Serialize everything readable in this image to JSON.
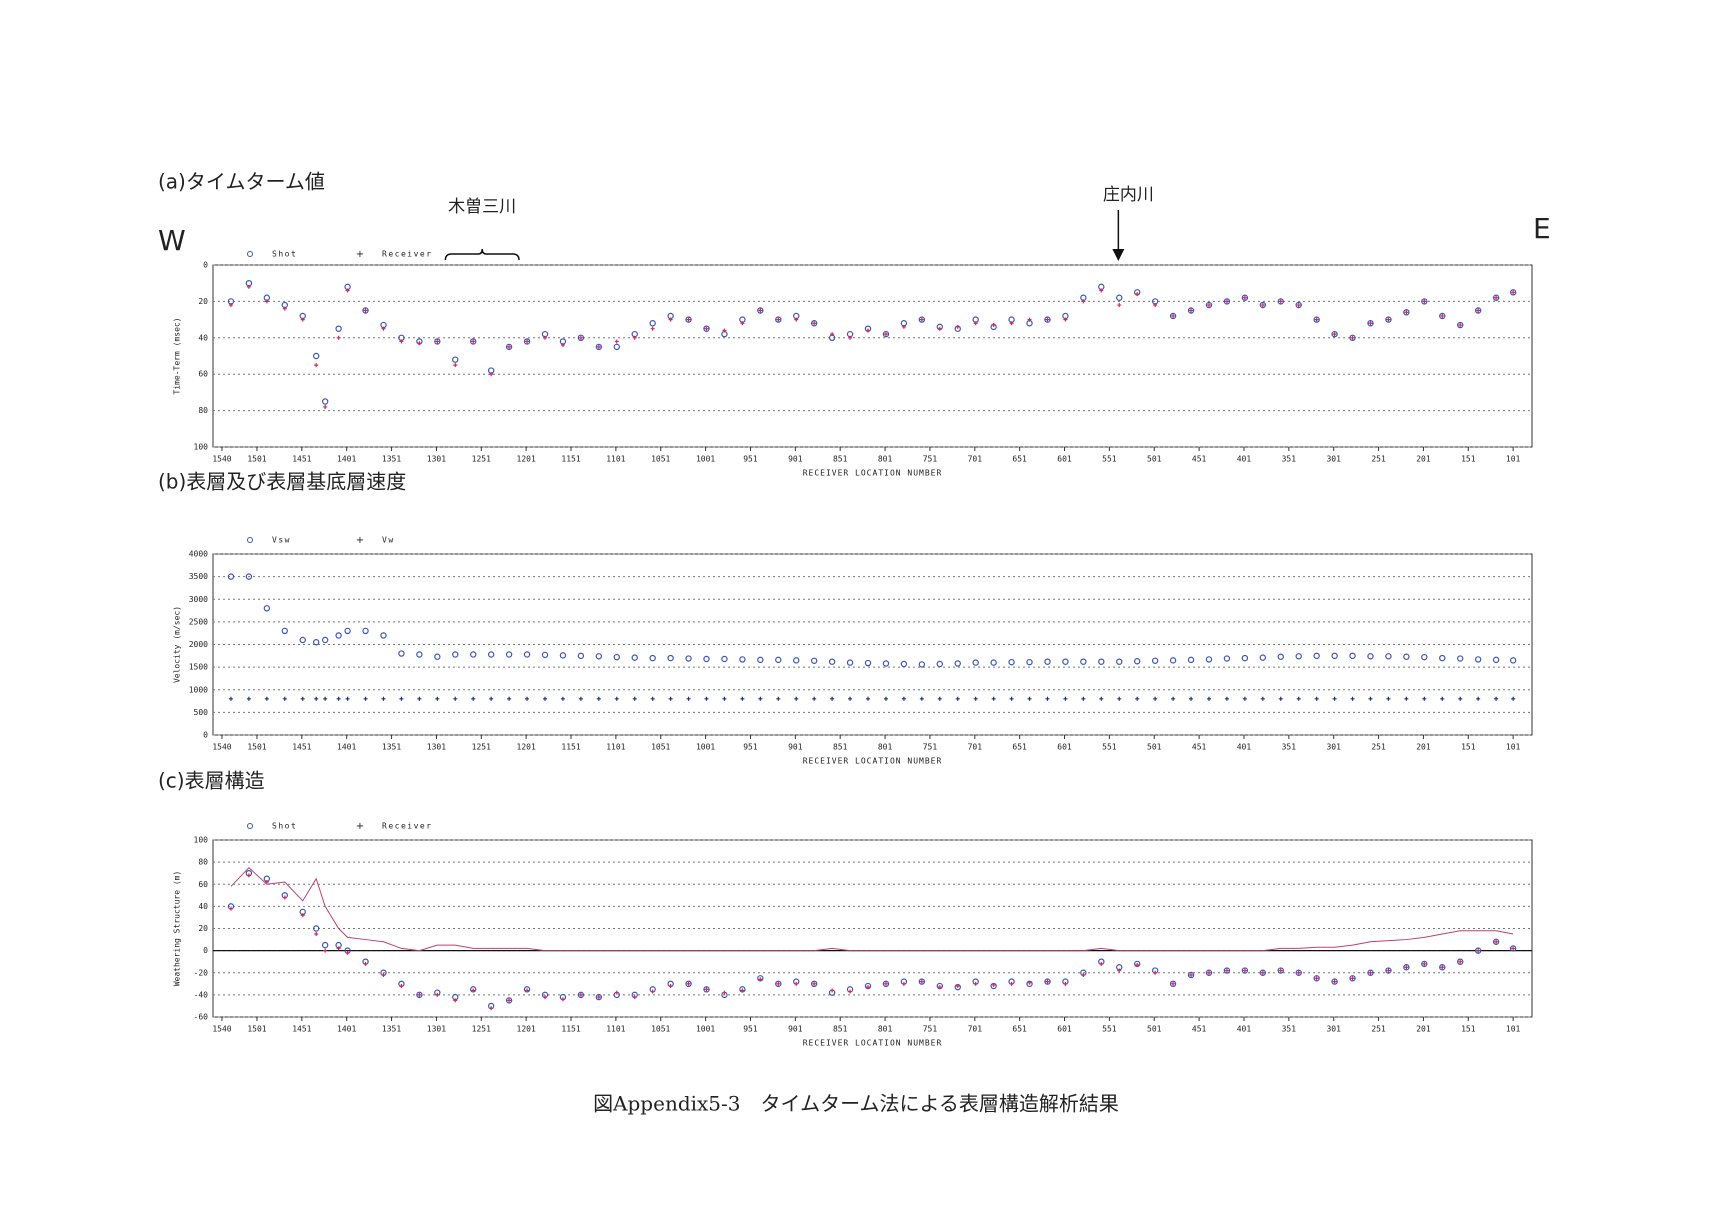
{
  "header": {
    "west": "W",
    "east": "E"
  },
  "caption": "図Appendix5-3　タイムターム法による表層構造解析結果",
  "chart_data": [
    {
      "type": "scatter",
      "title": "(a)タイムターム値",
      "ylabel": "Time-Term (msec)",
      "xlabel": "RECEIVER LOCATION NUMBER",
      "xlim": [
        1550,
        80
      ],
      "ylim": [
        100,
        0
      ],
      "grid": true,
      "xticks": [
        1540,
        1501,
        1451,
        1401,
        1351,
        1301,
        1251,
        1201,
        1151,
        1101,
        1051,
        1001,
        951,
        901,
        851,
        801,
        751,
        701,
        651,
        601,
        551,
        501,
        451,
        401,
        351,
        301,
        251,
        201,
        151,
        101
      ],
      "yticks": [
        0,
        20,
        40,
        60,
        80,
        100
      ],
      "annotations": [
        {
          "text": "木曽三川",
          "x": [
            1291,
            1209
          ]
        },
        {
          "text": "庄内川",
          "x": 541
        }
      ],
      "x": [
        1530,
        1510,
        1490,
        1470,
        1450,
        1435,
        1425,
        1410,
        1400,
        1380,
        1360,
        1340,
        1320,
        1300,
        1280,
        1260,
        1240,
        1220,
        1200,
        1180,
        1160,
        1140,
        1120,
        1100,
        1080,
        1060,
        1040,
        1020,
        1000,
        980,
        960,
        940,
        920,
        900,
        880,
        860,
        840,
        820,
        800,
        780,
        760,
        740,
        720,
        700,
        680,
        660,
        640,
        620,
        600,
        580,
        560,
        540,
        520,
        500,
        480,
        460,
        440,
        420,
        400,
        380,
        360,
        340,
        320,
        300,
        280,
        260,
        240,
        220,
        200,
        180,
        160,
        140,
        120,
        101
      ],
      "series": [
        {
          "name": "Shot",
          "color": "#3a55b8",
          "marker": "circle",
          "values": [
            20,
            10,
            18,
            22,
            28,
            50,
            75,
            35,
            12,
            25,
            33,
            40,
            42,
            42,
            52,
            42,
            58,
            45,
            42,
            38,
            42,
            40,
            45,
            45,
            38,
            32,
            28,
            30,
            35,
            38,
            30,
            25,
            30,
            28,
            32,
            40,
            38,
            35,
            38,
            32,
            30,
            34,
            35,
            30,
            34,
            30,
            32,
            30,
            28,
            18,
            12,
            18,
            15,
            20,
            28,
            25,
            22,
            20,
            18,
            22,
            20,
            22,
            30,
            38,
            40,
            32,
            30,
            26,
            20,
            28,
            33,
            25,
            18,
            15
          ]
        },
        {
          "name": "Receiver",
          "color": "#d42a5a",
          "marker": "plus",
          "values": [
            22,
            12,
            20,
            24,
            30,
            55,
            78,
            40,
            14,
            25,
            35,
            42,
            43,
            42,
            55,
            42,
            60,
            45,
            42,
            40,
            44,
            40,
            45,
            42,
            40,
            35,
            30,
            30,
            35,
            36,
            32,
            25,
            30,
            30,
            32,
            38,
            40,
            36,
            38,
            34,
            30,
            35,
            34,
            32,
            33,
            32,
            30,
            30,
            30,
            20,
            14,
            22,
            16,
            22,
            28,
            25,
            22,
            20,
            18,
            22,
            20,
            22,
            30,
            38,
            40,
            32,
            30,
            26,
            20,
            28,
            33,
            25,
            18,
            15
          ]
        }
      ]
    },
    {
      "type": "scatter",
      "title": "(b)表層及び表層基底層速度",
      "ylabel": "Velocity (m/sec)",
      "xlabel": "RECEIVER LOCATION NUMBER",
      "xlim": [
        1550,
        80
      ],
      "ylim": [
        0,
        4000
      ],
      "grid": true,
      "xticks": [
        1540,
        1501,
        1451,
        1401,
        1351,
        1301,
        1251,
        1201,
        1151,
        1101,
        1051,
        1001,
        951,
        901,
        851,
        801,
        751,
        701,
        651,
        601,
        551,
        501,
        451,
        401,
        351,
        301,
        251,
        201,
        151,
        101
      ],
      "yticks": [
        0,
        500,
        1000,
        1500,
        2000,
        2500,
        3000,
        3500,
        4000
      ],
      "x": [
        1530,
        1510,
        1490,
        1470,
        1450,
        1435,
        1425,
        1410,
        1400,
        1380,
        1360,
        1340,
        1320,
        1300,
        1280,
        1260,
        1240,
        1220,
        1200,
        1180,
        1160,
        1140,
        1120,
        1100,
        1080,
        1060,
        1040,
        1020,
        1000,
        980,
        960,
        940,
        920,
        900,
        880,
        860,
        840,
        820,
        800,
        780,
        760,
        740,
        720,
        700,
        680,
        660,
        640,
        620,
        600,
        580,
        560,
        540,
        520,
        500,
        480,
        460,
        440,
        420,
        400,
        380,
        360,
        340,
        320,
        300,
        280,
        260,
        240,
        220,
        200,
        180,
        160,
        140,
        120,
        101
      ],
      "series": [
        {
          "name": "Vsw",
          "color": "#3a55b8",
          "marker": "circle",
          "values": [
            3500,
            3500,
            2800,
            2300,
            2100,
            2050,
            2100,
            2200,
            2300,
            2300,
            2200,
            1800,
            1780,
            1730,
            1780,
            1780,
            1780,
            1780,
            1780,
            1770,
            1760,
            1750,
            1740,
            1720,
            1710,
            1700,
            1700,
            1690,
            1680,
            1680,
            1670,
            1660,
            1660,
            1650,
            1640,
            1620,
            1600,
            1590,
            1580,
            1570,
            1560,
            1570,
            1580,
            1600,
            1600,
            1610,
            1610,
            1620,
            1620,
            1620,
            1620,
            1620,
            1630,
            1640,
            1650,
            1660,
            1670,
            1690,
            1700,
            1710,
            1730,
            1740,
            1750,
            1750,
            1750,
            1740,
            1740,
            1730,
            1720,
            1700,
            1690,
            1670,
            1660,
            1650
          ]
        },
        {
          "name": "Vw",
          "color": "#1a3080",
          "marker": "plus",
          "values": [
            800,
            800,
            800,
            800,
            800,
            800,
            800,
            800,
            800,
            800,
            800,
            800,
            800,
            800,
            800,
            800,
            800,
            800,
            800,
            800,
            800,
            800,
            800,
            800,
            800,
            800,
            800,
            800,
            800,
            800,
            800,
            800,
            800,
            800,
            800,
            800,
            800,
            800,
            800,
            800,
            800,
            800,
            800,
            800,
            800,
            800,
            800,
            800,
            800,
            800,
            800,
            800,
            800,
            800,
            800,
            800,
            800,
            800,
            800,
            800,
            800,
            800,
            800,
            800,
            800,
            800,
            800,
            800,
            800,
            800,
            800,
            800,
            800,
            800
          ]
        }
      ]
    },
    {
      "type": "scatter",
      "title": "(c)表層構造",
      "ylabel": "Weathering Structure (m)",
      "xlabel": "RECEIVER LOCATION NUMBER",
      "xlim": [
        1550,
        80
      ],
      "ylim": [
        -60,
        100
      ],
      "grid": true,
      "reference_line": 0,
      "xticks": [
        1540,
        1501,
        1451,
        1401,
        1351,
        1301,
        1251,
        1201,
        1151,
        1101,
        1051,
        1001,
        951,
        901,
        851,
        801,
        751,
        701,
        651,
        601,
        551,
        501,
        451,
        401,
        351,
        301,
        251,
        201,
        151,
        101
      ],
      "yticks": [
        -60,
        -40,
        -20,
        0,
        20,
        40,
        60,
        80,
        100
      ],
      "x": [
        1530,
        1510,
        1490,
        1470,
        1450,
        1435,
        1425,
        1410,
        1400,
        1380,
        1360,
        1340,
        1320,
        1300,
        1280,
        1260,
        1240,
        1220,
        1200,
        1180,
        1160,
        1140,
        1120,
        1100,
        1080,
        1060,
        1040,
        1020,
        1000,
        980,
        960,
        940,
        920,
        900,
        880,
        860,
        840,
        820,
        800,
        780,
        760,
        740,
        720,
        700,
        680,
        660,
        640,
        620,
        600,
        580,
        560,
        540,
        520,
        500,
        480,
        460,
        440,
        420,
        400,
        380,
        360,
        340,
        320,
        300,
        280,
        260,
        240,
        220,
        200,
        180,
        160,
        140,
        120,
        101
      ],
      "series": [
        {
          "name": "Shot",
          "color": "#3a55b8",
          "marker": "circle",
          "values": [
            40,
            70,
            65,
            50,
            35,
            20,
            5,
            5,
            0,
            -10,
            -20,
            -30,
            -40,
            -38,
            -42,
            -35,
            -50,
            -45,
            -35,
            -40,
            -42,
            -40,
            -42,
            -40,
            -40,
            -35,
            -30,
            -30,
            -35,
            -40,
            -35,
            -25,
            -30,
            -28,
            -30,
            -38,
            -35,
            -32,
            -30,
            -28,
            -28,
            -32,
            -33,
            -28,
            -32,
            -28,
            -30,
            -28,
            -28,
            -20,
            -10,
            -15,
            -12,
            -18,
            -30,
            -22,
            -20,
            -18,
            -18,
            -20,
            -18,
            -20,
            -25,
            -28,
            -25,
            -20,
            -18,
            -15,
            -12,
            -15,
            -10,
            0,
            8,
            2
          ]
        },
        {
          "name": "Receiver",
          "color": "#d42a5a",
          "marker": "plus",
          "values": [
            38,
            68,
            62,
            48,
            32,
            15,
            0,
            2,
            -2,
            -12,
            -22,
            -32,
            -40,
            -40,
            -45,
            -36,
            -52,
            -45,
            -36,
            -42,
            -44,
            -40,
            -42,
            -38,
            -42,
            -37,
            -32,
            -30,
            -35,
            -38,
            -36,
            -26,
            -30,
            -30,
            -30,
            -36,
            -37,
            -33,
            -30,
            -30,
            -28,
            -33,
            -32,
            -30,
            -31,
            -30,
            -29,
            -28,
            -30,
            -22,
            -12,
            -18,
            -13,
            -20,
            -30,
            -22,
            -20,
            -18,
            -18,
            -20,
            -18,
            -20,
            -25,
            -28,
            -25,
            -20,
            -18,
            -15,
            -12,
            -15,
            -10,
            0,
            8,
            2
          ]
        },
        {
          "color": "#c04070",
          "marker": "line",
          "values": [
            58,
            75,
            60,
            62,
            45,
            65,
            40,
            20,
            12,
            10,
            8,
            2,
            0,
            5,
            5,
            2,
            2,
            2,
            2,
            0,
            0,
            0,
            0,
            0,
            0,
            0,
            0,
            0,
            0,
            0,
            0,
            0,
            0,
            0,
            0,
            2,
            0,
            0,
            0,
            0,
            0,
            0,
            0,
            0,
            0,
            0,
            0,
            0,
            0,
            0,
            2,
            0,
            0,
            0,
            0,
            0,
            0,
            0,
            0,
            0,
            2,
            2,
            3,
            3,
            5,
            8,
            9,
            10,
            12,
            15,
            18,
            18,
            18,
            15
          ]
        }
      ]
    }
  ]
}
